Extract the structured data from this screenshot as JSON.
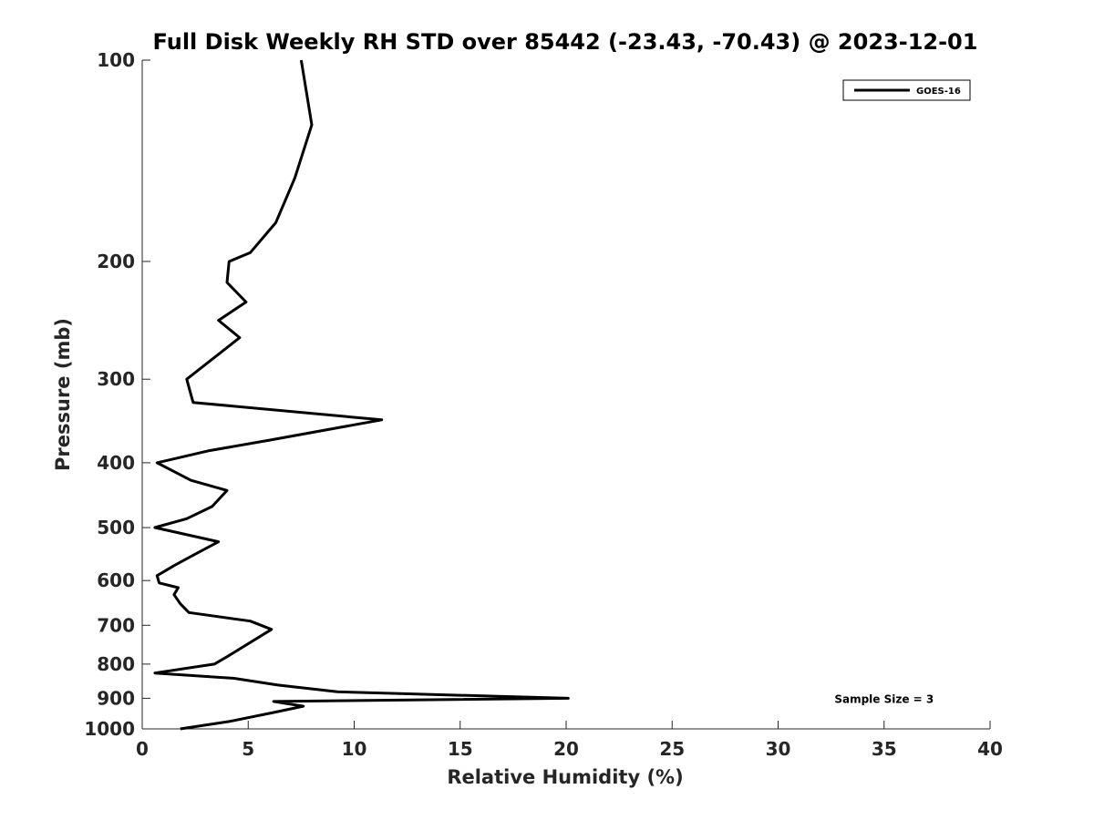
{
  "chart_data": {
    "type": "line",
    "title": "Full Disk Weekly RH STD over 85442 (-23.43, -70.43) @ 2023-12-01",
    "xlabel": "Relative Humidity (%)",
    "ylabel": "Pressure (mb)",
    "xlim": [
      0,
      40
    ],
    "ylim": [
      100,
      1000
    ],
    "yscale": "log",
    "y_reversed": true,
    "x_ticks": [
      "0",
      "5",
      "10",
      "15",
      "20",
      "25",
      "30",
      "35",
      "40"
    ],
    "y_ticks": [
      "100",
      "200",
      "300",
      "400",
      "500",
      "600",
      "700",
      "800",
      "900",
      "1000"
    ],
    "grid": false,
    "legend": {
      "position": "top-right",
      "entries": [
        "GOES-16"
      ]
    },
    "series": [
      {
        "name": "GOES-16",
        "color": "#000000",
        "points": [
          [
            7.5,
            100
          ],
          [
            8.0,
            125
          ],
          [
            7.2,
            150
          ],
          [
            6.3,
            175
          ],
          [
            5.1,
            194
          ],
          [
            4.1,
            200
          ],
          [
            4.0,
            215
          ],
          [
            4.9,
            230
          ],
          [
            3.6,
            245
          ],
          [
            4.6,
            260
          ],
          [
            2.1,
            300
          ],
          [
            2.4,
            325
          ],
          [
            11.3,
            345
          ],
          [
            6.0,
            370
          ],
          [
            3.1,
            384
          ],
          [
            0.7,
            400
          ],
          [
            2.3,
            425
          ],
          [
            4.0,
            440
          ],
          [
            3.3,
            465
          ],
          [
            2.1,
            485
          ],
          [
            0.6,
            500
          ],
          [
            3.6,
            525
          ],
          [
            2.4,
            550
          ],
          [
            1.5,
            570
          ],
          [
            0.7,
            590
          ],
          [
            0.8,
            605
          ],
          [
            1.7,
            615
          ],
          [
            1.5,
            630
          ],
          [
            1.8,
            650
          ],
          [
            2.2,
            670
          ],
          [
            5.1,
            690
          ],
          [
            6.1,
            710
          ],
          [
            4.0,
            780
          ],
          [
            3.4,
            800
          ],
          [
            0.6,
            825
          ],
          [
            4.3,
            840
          ],
          [
            6.4,
            860
          ],
          [
            9.2,
            880
          ],
          [
            20.1,
            900
          ],
          [
            6.2,
            910
          ],
          [
            7.6,
            925
          ],
          [
            6.2,
            945
          ],
          [
            4.1,
            975
          ],
          [
            1.8,
            1000
          ]
        ]
      }
    ],
    "annotations": [
      {
        "text": "Sample Size = 3",
        "x": 35.0,
        "y": 900
      }
    ]
  }
}
